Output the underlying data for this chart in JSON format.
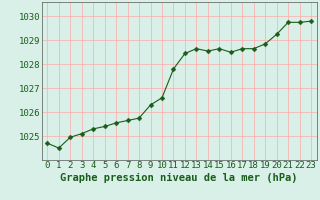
{
  "x": [
    0,
    1,
    2,
    3,
    4,
    5,
    6,
    7,
    8,
    9,
    10,
    11,
    12,
    13,
    14,
    15,
    16,
    17,
    18,
    19,
    20,
    21,
    22,
    23
  ],
  "y": [
    1024.7,
    1024.5,
    1024.95,
    1025.1,
    1025.3,
    1025.4,
    1025.55,
    1025.65,
    1025.75,
    1026.3,
    1026.6,
    1027.8,
    1028.45,
    1028.65,
    1028.55,
    1028.65,
    1028.5,
    1028.65,
    1028.65,
    1028.85,
    1029.25,
    1029.75,
    1029.75,
    1029.8
  ],
  "line_color": "#1a5c1a",
  "marker": "D",
  "marker_size": 2.5,
  "bg_color": "#d8f0e8",
  "grid_color": "#ffaaaa",
  "xlabel": "Graphe pression niveau de la mer (hPa)",
  "xlabel_fontsize": 7.5,
  "ylabel_ticks": [
    1025,
    1026,
    1027,
    1028,
    1029,
    1030
  ],
  "xlim": [
    -0.5,
    23.5
  ],
  "ylim": [
    1024.0,
    1030.6
  ],
  "tick_fontsize": 6.5,
  "xlabel_color": "#1a5c1a",
  "border_color": "#555555"
}
